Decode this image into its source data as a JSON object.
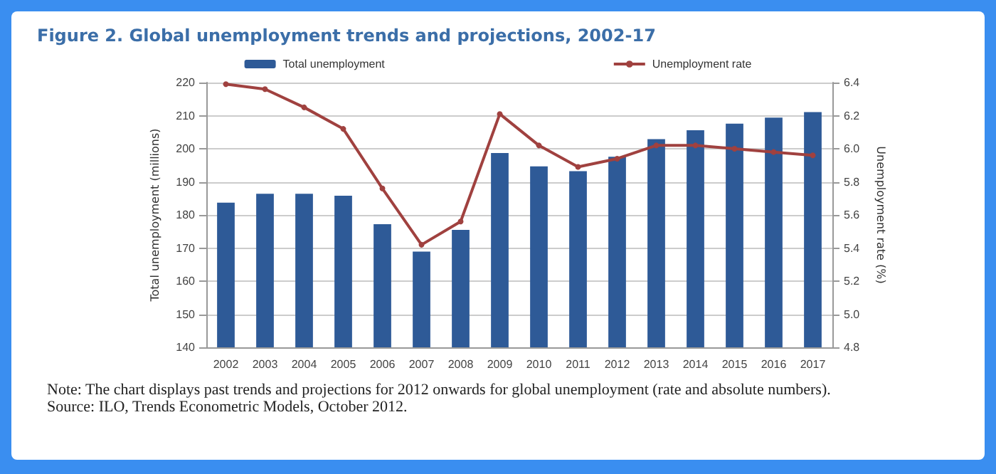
{
  "chart_data": {
    "type": "bar",
    "title": "Figure 2. Global unemployment trends and projections, 2002-17",
    "ylabel": "Total unemployment (millions)",
    "y2label": "Unemployment rate (%)",
    "categories": [
      "2002",
      "2003",
      "2004",
      "2005",
      "2006",
      "2007",
      "2008",
      "2009",
      "2010",
      "2011",
      "2012",
      "2013",
      "2014",
      "2015",
      "2016",
      "2017"
    ],
    "series": [
      {
        "name": "Total unemployment",
        "color": "#2e5a97",
        "values": [
          183.7,
          186.4,
          186.4,
          185.8,
          177.2,
          168.9,
          175.5,
          198.7,
          194.7,
          193.2,
          197.6,
          202.9,
          205.6,
          207.6,
          209.4,
          211.1
        ]
      },
      {
        "name": "Unemployment rate",
        "type": "line",
        "axis": "y2",
        "color": "#a0413f",
        "values": [
          6.39,
          6.36,
          6.25,
          6.12,
          5.76,
          5.42,
          5.56,
          6.21,
          6.02,
          5.89,
          5.94,
          6.02,
          6.02,
          6.0,
          5.98,
          5.96
        ]
      }
    ],
    "ylim": [
      140,
      220
    ],
    "yticks": [
      140,
      150,
      160,
      170,
      180,
      190,
      200,
      210,
      220
    ],
    "y2lim": [
      4.8,
      6.4
    ],
    "y2ticks": [
      4.8,
      {
        "value": 5,
        "label": "5.0"
      },
      5.2,
      5.4,
      5.6,
      5.8,
      {
        "value": 6,
        "label": "6.0"
      },
      6.2,
      6.4
    ],
    "grid": "y",
    "legend": "top",
    "marker": "circle",
    "line_style": "solid",
    "annotations": [
      "Note: The chart displays past trends and projections for 2012 onwards for global unemployment (rate and absolute numbers).",
      "Source: ILO, Trends Econometric Models, October 2012."
    ]
  }
}
